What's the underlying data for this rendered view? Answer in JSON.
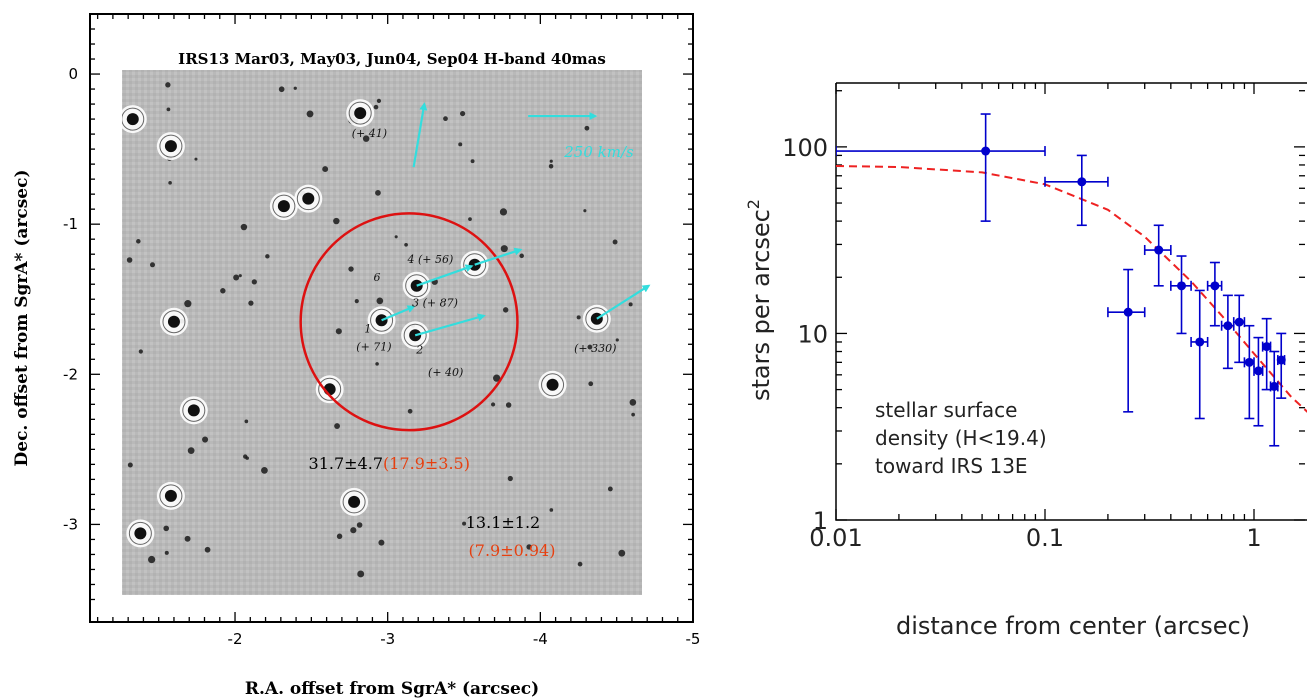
{
  "chart_data": [
    {
      "type": "scatter",
      "title": "IRS13 Mar03, May03, Jun04, Sep04 H-band 40mas",
      "xlabel": "R.A. offset from SgrA* (arcsec)",
      "ylabel": "Dec. offset from SgrA* (arcsec)",
      "xlim": [
        -1.05,
        -5.0
      ],
      "ylim": [
        -3.65,
        0.4
      ],
      "x_ticks": [
        "-2",
        "-3",
        "-4",
        "-5"
      ],
      "x_tick_values": [
        -2,
        -3,
        -4,
        -5
      ],
      "y_ticks": [
        "0",
        "-1",
        "-2",
        "-3"
      ],
      "y_tick_values": [
        0,
        -1,
        -2,
        -3
      ],
      "scale_label": "250 km/s",
      "circle": {
        "x": -3.14,
        "y": -1.65,
        "r": 0.71
      },
      "bright_stars": [
        {
          "x": -1.33,
          "y": -0.3
        },
        {
          "x": -1.58,
          "y": -0.48
        },
        {
          "x": -2.82,
          "y": -0.26
        },
        {
          "x": -2.32,
          "y": -0.88
        },
        {
          "x": -2.48,
          "y": -0.83
        },
        {
          "x": -3.57,
          "y": -1.27
        },
        {
          "x": -3.19,
          "y": -1.41
        },
        {
          "x": -2.96,
          "y": -1.64
        },
        {
          "x": -3.18,
          "y": -1.74
        },
        {
          "x": -1.6,
          "y": -1.65
        },
        {
          "x": -4.37,
          "y": -1.63
        },
        {
          "x": -2.62,
          "y": -2.1
        },
        {
          "x": -4.08,
          "y": -2.07
        },
        {
          "x": -1.73,
          "y": -2.24
        },
        {
          "x": -1.58,
          "y": -2.81
        },
        {
          "x": -2.78,
          "y": -2.85
        },
        {
          "x": -1.38,
          "y": -3.06
        }
      ],
      "velocity_vectors": [
        {
          "from": [
            -3.17,
            -0.62
          ],
          "to": [
            -3.24,
            -0.2
          ]
        },
        {
          "from": [
            -3.57,
            -1.27
          ],
          "to": [
            -3.87,
            -1.17
          ]
        },
        {
          "from": [
            -3.19,
            -1.41
          ],
          "to": [
            -3.55,
            -1.28
          ]
        },
        {
          "from": [
            -2.96,
            -1.64
          ],
          "to": [
            -3.17,
            -1.55
          ]
        },
        {
          "from": [
            -3.18,
            -1.74
          ],
          "to": [
            -3.63,
            -1.61
          ]
        },
        {
          "from": [
            -4.37,
            -1.63
          ],
          "to": [
            -4.71,
            -1.41
          ]
        },
        {
          "from": [
            -3.92,
            -0.28
          ],
          "to": [
            -4.36,
            -0.28
          ]
        }
      ],
      "annotations": [
        {
          "text": "(+ 41)",
          "x": -2.88,
          "y": -0.42
        },
        {
          "text": "6",
          "x": -2.93,
          "y": -1.38
        },
        {
          "text": "4 (+ 56)",
          "x": -3.28,
          "y": -1.26
        },
        {
          "text": "3 (+ 87)",
          "x": -3.31,
          "y": -1.55
        },
        {
          "text": "1",
          "x": -2.87,
          "y": -1.72
        },
        {
          "text": "(+ 71)",
          "x": -2.91,
          "y": -1.84
        },
        {
          "text": "2",
          "x": -3.21,
          "y": -1.86
        },
        {
          "text": "(+ 40)",
          "x": -3.38,
          "y": -2.01
        },
        {
          "text": "(+ 330)",
          "x": -4.36,
          "y": -1.85
        }
      ],
      "density_labels": {
        "inner": "31.7±4.7",
        "inner_red": "(17.9±3.5)",
        "outer": "13.1±1.2",
        "outer_red": "(7.9±0.94)"
      }
    },
    {
      "type": "scatter",
      "xlabel": "distance from center (arcsec)",
      "ylabel": "stars per arcsec",
      "ylabel_sup": "2",
      "x_scale": "log",
      "y_scale": "log",
      "xlim": [
        0.01,
        2.0
      ],
      "ylim": [
        1,
        220
      ],
      "x_ticks": [
        "0.01",
        "0.1",
        "1"
      ],
      "x_tick_values": [
        0.01,
        0.1,
        1
      ],
      "y_ticks": [
        "1",
        "10",
        "100"
      ],
      "y_tick_values": [
        1,
        10,
        100
      ],
      "legend_text": [
        "stellar surface",
        "density (H<19.4)",
        "toward IRS 13E"
      ],
      "series": [
        {
          "color": "#0000cc",
          "points": [
            {
              "x": 0.052,
              "y": 95,
              "xerr": [
                0.01,
                0.1
              ],
              "yerr": [
                40,
                150
              ]
            },
            {
              "x": 0.15,
              "y": 65,
              "xerr": [
                0.1,
                0.2
              ],
              "yerr": [
                38,
                90
              ]
            },
            {
              "x": 0.25,
              "y": 13,
              "xerr": [
                0.2,
                0.3
              ],
              "yerr": [
                3.8,
                22
              ]
            },
            {
              "x": 0.35,
              "y": 28,
              "xerr": [
                0.3,
                0.4
              ],
              "yerr": [
                18,
                38
              ]
            },
            {
              "x": 0.45,
              "y": 18,
              "xerr": [
                0.4,
                0.5
              ],
              "yerr": [
                10,
                26
              ]
            },
            {
              "x": 0.55,
              "y": 9,
              "xerr": [
                0.5,
                0.6
              ],
              "yerr": [
                3.5,
                17
              ]
            },
            {
              "x": 0.65,
              "y": 18,
              "xerr": [
                0.6,
                0.7
              ],
              "yerr": [
                11,
                24
              ]
            },
            {
              "x": 0.75,
              "y": 11,
              "xerr": [
                0.7,
                0.8
              ],
              "yerr": [
                6.5,
                16
              ]
            },
            {
              "x": 0.85,
              "y": 11.5,
              "xerr": [
                0.8,
                0.9
              ],
              "yerr": [
                7,
                16
              ]
            },
            {
              "x": 0.95,
              "y": 7,
              "xerr": [
                0.9,
                1.0
              ],
              "yerr": [
                3.5,
                11
              ]
            },
            {
              "x": 1.05,
              "y": 6.3,
              "xerr": [
                1.0,
                1.1
              ],
              "yerr": [
                3.2,
                9.5
              ]
            },
            {
              "x": 1.15,
              "y": 8.5,
              "xerr": [
                1.1,
                1.2
              ],
              "yerr": [
                5,
                12
              ]
            },
            {
              "x": 1.25,
              "y": 5.2,
              "xerr": [
                1.2,
                1.3
              ],
              "yerr": [
                2.5,
                8
              ]
            },
            {
              "x": 1.35,
              "y": 7.2,
              "xerr": [
                1.3,
                1.4
              ],
              "yerr": [
                4.5,
                10
              ]
            }
          ]
        },
        {
          "color": "#ee2222",
          "style": "dashed",
          "points": [
            {
              "x": 0.01,
              "y": 79
            },
            {
              "x": 0.02,
              "y": 78
            },
            {
              "x": 0.05,
              "y": 73
            },
            {
              "x": 0.1,
              "y": 63
            },
            {
              "x": 0.2,
              "y": 46
            },
            {
              "x": 0.3,
              "y": 33
            },
            {
              "x": 0.5,
              "y": 19
            },
            {
              "x": 0.7,
              "y": 12.5
            },
            {
              "x": 1.0,
              "y": 7.8
            },
            {
              "x": 1.5,
              "y": 4.6
            },
            {
              "x": 2.0,
              "y": 3.4
            }
          ]
        }
      ]
    }
  ]
}
